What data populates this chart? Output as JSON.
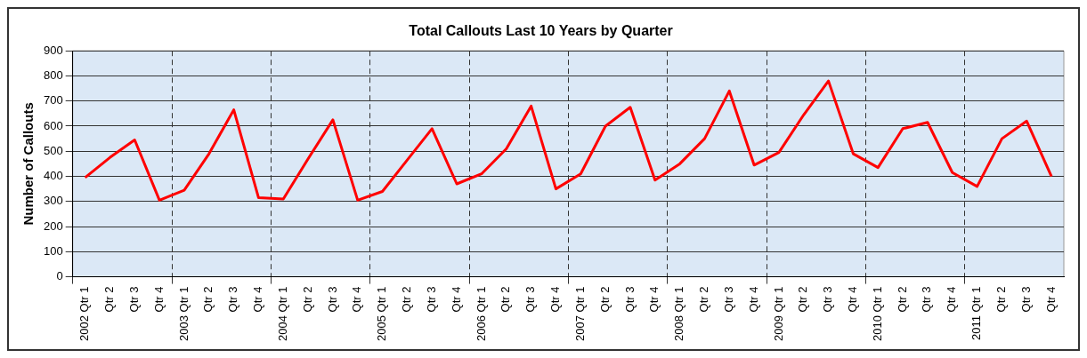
{
  "chart_data": {
    "type": "line",
    "title": "Total Callouts Last 10 Years by Quarter",
    "ylabel": "Number of Callouts",
    "categories": [
      "2002 Qtr 1",
      "Qtr 2",
      "Qtr 3",
      "Qtr 4",
      "2003 Qtr 1",
      "Qtr 2",
      "Qtr 3",
      "Qtr 4",
      "2004 Qtr 1",
      "Qtr 2",
      "Qtr 3",
      "Qtr 4",
      "2005 Qtr 1",
      "Qtr 2",
      "Qtr 3",
      "Qtr 4",
      "2006 Qtr 1",
      "Qtr 2",
      "Qtr 3",
      "Qtr 4",
      "2007 Qtr 1",
      "Qtr 2",
      "Qtr 3",
      "Qtr 4",
      "2008 Qtr 1",
      "Qtr 2",
      "Qtr 3",
      "Qtr 4",
      "2009 Qtr 1",
      "Qtr 2",
      "Qtr 3",
      "Qtr 4",
      "2010 Qtr 1",
      "Qtr 2",
      "Qtr 3",
      "Qtr 4",
      "2011 Qtr 1",
      "Qtr 2",
      "Qtr 3",
      "Qtr 4"
    ],
    "series": [
      {
        "color": "#ff0000",
        "values": [
          395,
          475,
          545,
          305,
          345,
          490,
          665,
          315,
          310,
          470,
          625,
          305,
          340,
          465,
          590,
          370,
          410,
          510,
          680,
          350,
          410,
          600,
          675,
          385,
          450,
          550,
          740,
          445,
          495,
          645,
          780,
          490,
          435,
          590,
          615,
          415,
          360,
          550,
          620,
          400
        ]
      }
    ],
    "ylim": [
      0,
      900
    ],
    "yticks": [
      0,
      100,
      200,
      300,
      400,
      500,
      600,
      700,
      800,
      900
    ],
    "grid": true,
    "legend": false,
    "marker": "none",
    "line_style": "solid"
  }
}
